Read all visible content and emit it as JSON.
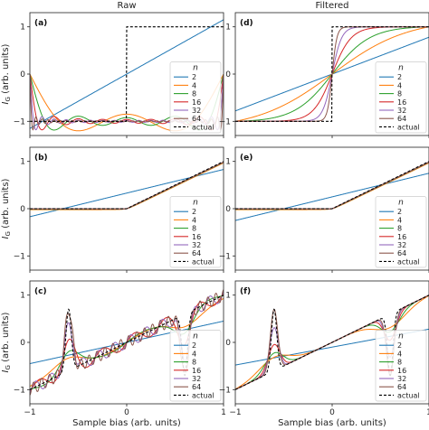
{
  "figure": {
    "columns": [
      "Raw",
      "Filtered"
    ],
    "xlabel": "Sample bias (arb. units)",
    "ylabel_text": "(arb. units)",
    "ylabel_symbol": "I",
    "ylabel_sub": "G",
    "legend_title": "n",
    "colors": {
      "2": "#1f77b4",
      "4": "#ff7f0e",
      "8": "#2ca02c",
      "16": "#d62728",
      "32": "#9467bd",
      "64": "#8c564b",
      "actual": "#000000"
    }
  },
  "chart_data": [
    {
      "id": "a",
      "label": "(a)",
      "column": "Raw",
      "row": 0,
      "type": "line",
      "signal": "step",
      "filtered": false,
      "xlim": [
        -1,
        1
      ],
      "ylim": [
        -1.3,
        1.3
      ],
      "xticks": [
        -1,
        0,
        1
      ],
      "yticks": [
        -1,
        0,
        1
      ],
      "series": [
        {
          "name": "2"
        },
        {
          "name": "4"
        },
        {
          "name": "8"
        },
        {
          "name": "16"
        },
        {
          "name": "32"
        },
        {
          "name": "64"
        },
        {
          "name": "actual"
        }
      ]
    },
    {
      "id": "d",
      "label": "(d)",
      "column": "Filtered",
      "row": 0,
      "type": "line",
      "signal": "step",
      "filtered": true,
      "xlim": [
        -1,
        1
      ],
      "ylim": [
        -1.3,
        1.3
      ],
      "xticks": [
        -1,
        0,
        1
      ],
      "yticks": [
        -1,
        0,
        1
      ],
      "series": [
        {
          "name": "2"
        },
        {
          "name": "4"
        },
        {
          "name": "8"
        },
        {
          "name": "16"
        },
        {
          "name": "32"
        },
        {
          "name": "64"
        },
        {
          "name": "actual"
        }
      ]
    },
    {
      "id": "b",
      "label": "(b)",
      "column": "Raw",
      "row": 1,
      "type": "line",
      "signal": "ramp",
      "filtered": false,
      "xlim": [
        -1,
        1
      ],
      "ylim": [
        -1.3,
        1.3
      ],
      "xticks": [
        -1,
        0,
        1
      ],
      "yticks": [
        -1,
        0,
        1
      ],
      "series": [
        {
          "name": "2"
        },
        {
          "name": "4"
        },
        {
          "name": "8"
        },
        {
          "name": "16"
        },
        {
          "name": "32"
        },
        {
          "name": "64"
        },
        {
          "name": "actual"
        }
      ]
    },
    {
      "id": "e",
      "label": "(e)",
      "column": "Filtered",
      "row": 1,
      "type": "line",
      "signal": "ramp",
      "filtered": true,
      "xlim": [
        -1,
        1
      ],
      "ylim": [
        -1.3,
        1.3
      ],
      "xticks": [
        -1,
        0,
        1
      ],
      "yticks": [
        -1,
        0,
        1
      ],
      "series": [
        {
          "name": "2"
        },
        {
          "name": "4"
        },
        {
          "name": "8"
        },
        {
          "name": "16"
        },
        {
          "name": "32"
        },
        {
          "name": "64"
        },
        {
          "name": "actual"
        }
      ]
    },
    {
      "id": "c",
      "label": "(c)",
      "column": "Raw",
      "row": 2,
      "type": "line",
      "signal": "peaks",
      "filtered": false,
      "xlim": [
        -1,
        1
      ],
      "ylim": [
        -1.3,
        1.3
      ],
      "xticks": [
        -1,
        0,
        1
      ],
      "yticks": [
        -1,
        0,
        1
      ],
      "series": [
        {
          "name": "2"
        },
        {
          "name": "4"
        },
        {
          "name": "8"
        },
        {
          "name": "16"
        },
        {
          "name": "32"
        },
        {
          "name": "64"
        },
        {
          "name": "actual"
        }
      ]
    },
    {
      "id": "f",
      "label": "(f)",
      "column": "Filtered",
      "row": 2,
      "type": "line",
      "signal": "peaks",
      "filtered": true,
      "xlim": [
        -1,
        1
      ],
      "ylim": [
        -1.3,
        1.3
      ],
      "xticks": [
        -1,
        0,
        1
      ],
      "yticks": [
        -1,
        0,
        1
      ],
      "series": [
        {
          "name": "2"
        },
        {
          "name": "4"
        },
        {
          "name": "8"
        },
        {
          "name": "16"
        },
        {
          "name": "32"
        },
        {
          "name": "64"
        },
        {
          "name": "actual"
        }
      ]
    }
  ]
}
